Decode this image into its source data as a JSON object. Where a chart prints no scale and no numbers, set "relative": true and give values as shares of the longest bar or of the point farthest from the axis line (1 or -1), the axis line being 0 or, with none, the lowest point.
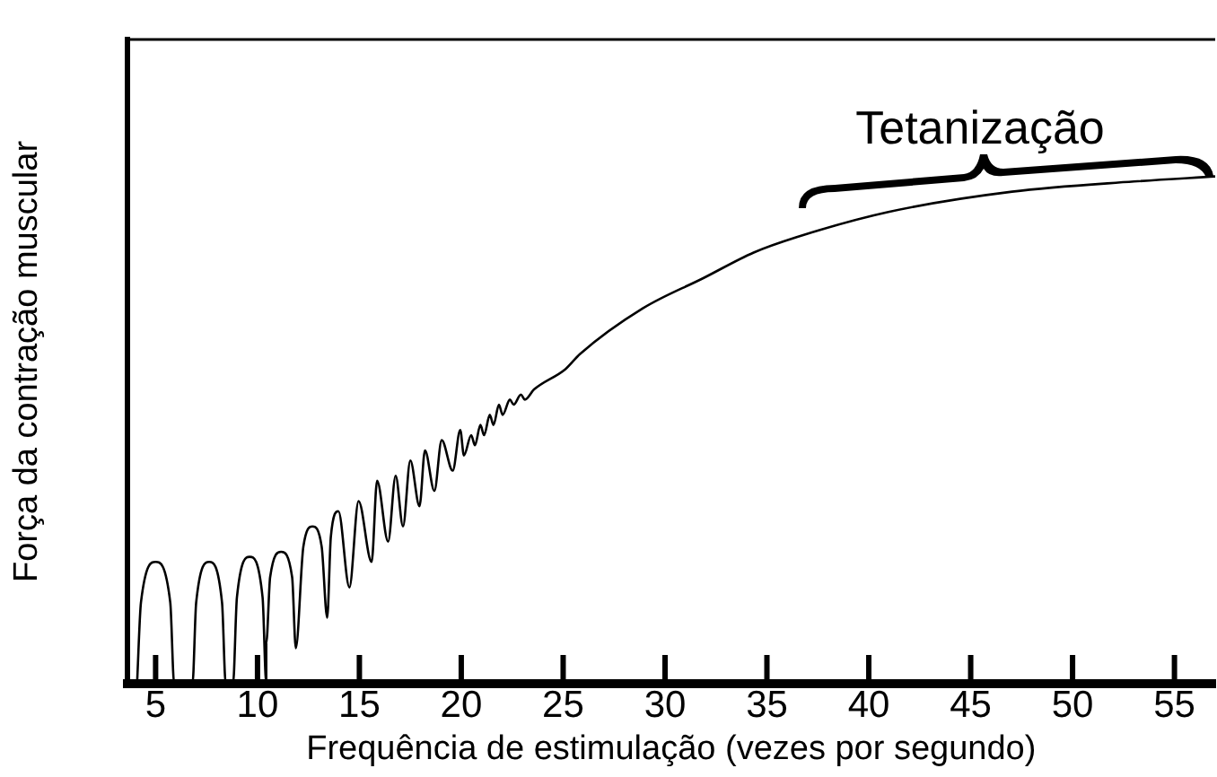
{
  "chart_data": {
    "type": "line",
    "relative": true,
    "xlabel": "Frequência de estimulação (vezes por segundo)",
    "ylabel": "Força da contração muscular",
    "annotations": [
      "Tetanização"
    ],
    "xlim": [
      3.6,
      57
    ],
    "xticks": [
      5,
      10,
      15,
      20,
      25,
      30,
      35,
      40,
      45,
      50,
      55
    ],
    "grid": false,
    "legend": false,
    "marker": "none",
    "tick_labels": "x",
    "series": [
      {
        "color": "#000000",
        "x": [
          4.09,
          4.28,
          5.0,
          5.72,
          5.91,
          6.81,
          6.99,
          7.63,
          8.26,
          8.44,
          8.8,
          8.99,
          9.62,
          10.25,
          10.43,
          10.43,
          10.62,
          11.16,
          11.7,
          11.88,
          12.25,
          12.7,
          13.15,
          13.42,
          13.6,
          13.97,
          14.51,
          14.96,
          15.6,
          15.87,
          16.41,
          16.78,
          17.14,
          17.5,
          17.95,
          18.22,
          18.68,
          19.04,
          19.58,
          19.95,
          20.13,
          20.49,
          20.67,
          20.94,
          21.12,
          21.4,
          21.58,
          21.85,
          22.03,
          22.39,
          22.57,
          22.93,
          23.12,
          23.57,
          25.11,
          25.83,
          28.91,
          31.9,
          34.35,
          36.43,
          40.96,
          47.03,
          53.01,
          57.0
        ],
        "values": [
          0,
          0.16,
          0.24,
          0.16,
          0,
          0,
          0.16,
          0.24,
          0.16,
          0,
          0,
          0.17,
          0.25,
          0.17,
          0,
          0.08,
          0.21,
          0.26,
          0.21,
          0.07,
          0.27,
          0.31,
          0.27,
          0.13,
          0.29,
          0.34,
          0.19,
          0.36,
          0.24,
          0.4,
          0.28,
          0.41,
          0.31,
          0.44,
          0.35,
          0.46,
          0.38,
          0.48,
          0.42,
          0.5,
          0.45,
          0.49,
          0.47,
          0.51,
          0.49,
          0.53,
          0.51,
          0.55,
          0.53,
          0.56,
          0.55,
          0.57,
          0.56,
          0.58,
          0.62,
          0.65,
          0.74,
          0.8,
          0.85,
          0.88,
          0.93,
          0.97,
          0.99,
          1
        ]
      }
    ]
  }
}
